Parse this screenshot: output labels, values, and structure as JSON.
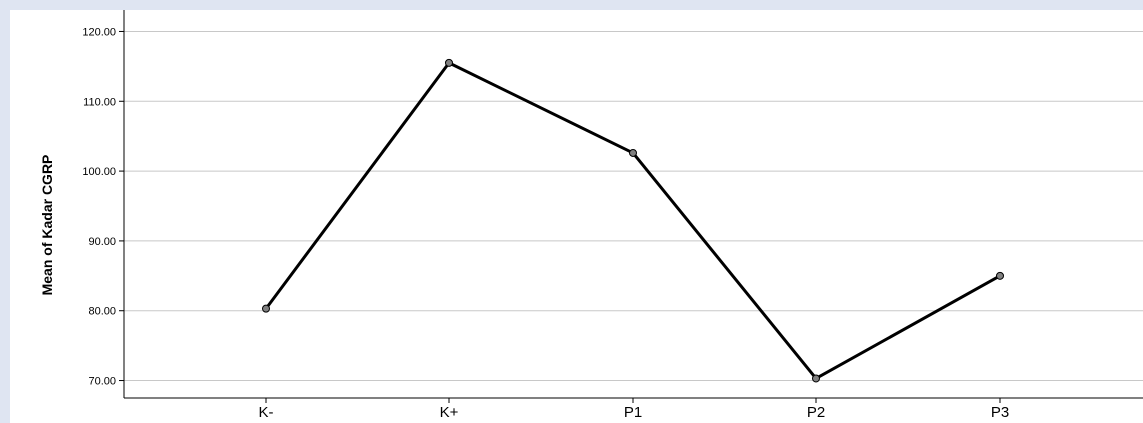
{
  "chart_data": {
    "type": "line",
    "title": "",
    "xlabel": "",
    "ylabel": "Mean of Kadar CGRP",
    "categories": [
      "K-",
      "K+",
      "P1",
      "P2",
      "P3"
    ],
    "series": [
      {
        "values": [
          80.3,
          115.5,
          102.6,
          70.3,
          85.0
        ]
      }
    ],
    "ylim": [
      67.5,
      122.5
    ],
    "yticks": [
      70,
      80,
      90,
      100,
      110,
      120
    ],
    "ytick_labels": [
      "70.00",
      "80.00",
      "90.00",
      "100.00",
      "110.00",
      "120.00"
    ],
    "grid": true,
    "legend": "none",
    "colors": {
      "line": "#000000",
      "marker_fill": "#808080",
      "grid": "#c8c8c8",
      "background": "#ffffff",
      "frame": "#dfe5f2"
    }
  }
}
